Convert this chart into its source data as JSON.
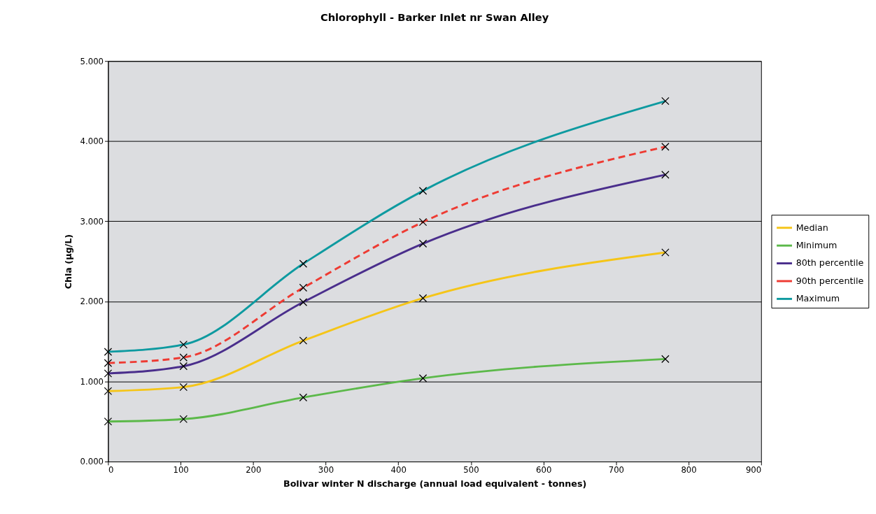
{
  "chart_data": {
    "type": "line",
    "title": "Chlorophyll - Barker Inlet nr Swan Alley",
    "xlabel": "Bolivar winter N discharge (annual load equivalent - tonnes)",
    "ylabel": "Chla (µg/L)",
    "x": [
      0,
      104,
      269,
      434,
      768
    ],
    "series": [
      {
        "name": "Median",
        "color": "#f5c518",
        "values": [
          0.88,
          0.93,
          1.51,
          2.04,
          2.61
        ]
      },
      {
        "name": "Minimum",
        "color": "#5cb94a",
        "values": [
          0.5,
          0.53,
          0.8,
          1.04,
          1.28
        ]
      },
      {
        "name": "80th percentile",
        "color": "#4a2e8c",
        "values": [
          1.1,
          1.19,
          1.99,
          2.72,
          3.58
        ]
      },
      {
        "name": "90th percentile",
        "color": "#ee3b33",
        "values": [
          1.23,
          1.3,
          2.17,
          2.99,
          3.93
        ],
        "line_style": "dashed"
      },
      {
        "name": "Maximum",
        "color": "#0e9aa0",
        "values": [
          1.37,
          1.46,
          2.47,
          3.38,
          4.5
        ]
      }
    ],
    "xlim": [
      0,
      900
    ],
    "xticks": [
      0,
      100,
      200,
      300,
      400,
      500,
      600,
      700,
      800,
      900
    ],
    "ylim": [
      0,
      5
    ],
    "yticks": [
      {
        "value": 0,
        "label": "0.000"
      },
      {
        "value": 1,
        "label": "1.000"
      },
      {
        "value": 2,
        "label": "2.000"
      },
      {
        "value": 3,
        "label": "3.000"
      },
      {
        "value": 4,
        "label": "4.000"
      },
      {
        "value": 5,
        "label": "5.000"
      }
    ],
    "grid": "y",
    "legend": "right",
    "marker": "cross",
    "line_style": "solid"
  }
}
